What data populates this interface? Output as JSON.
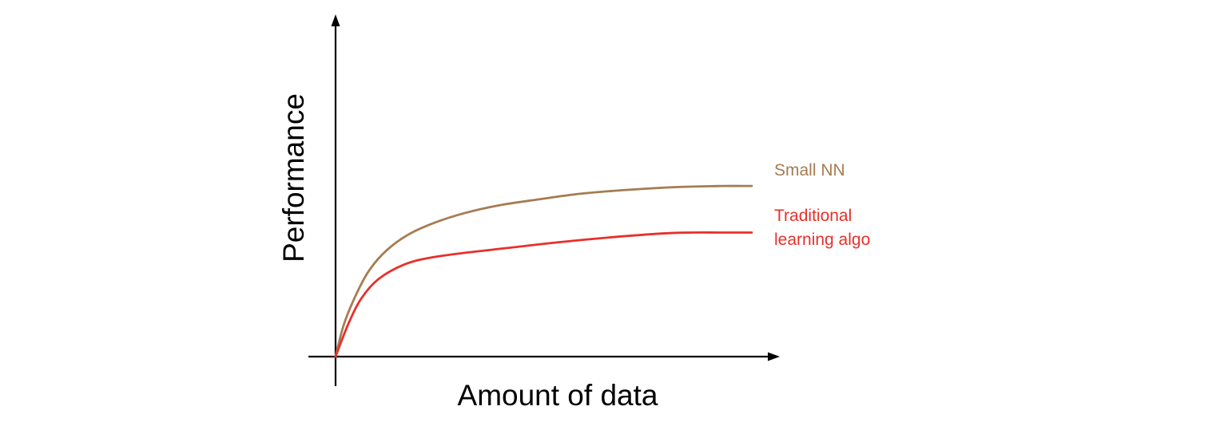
{
  "chart_data": {
    "type": "line",
    "title": "",
    "xlabel": "Amount of data",
    "ylabel": "Performance",
    "xlim": [
      0,
      100
    ],
    "ylim": [
      0,
      100
    ],
    "grid": false,
    "legend": "inline-right",
    "ticks_shown": false,
    "series": [
      {
        "name": "Small NN",
        "label_lines": [
          "Small NN"
        ],
        "color": "#a57c52",
        "x": [
          0,
          2,
          5,
          8,
          12,
          17,
          23,
          30,
          38,
          47,
          57,
          68,
          80,
          90,
          97
        ],
        "y": [
          0,
          17,
          33,
          45,
          55,
          63,
          69,
          74,
          78,
          81,
          84,
          86,
          87.5,
          88,
          88
        ]
      },
      {
        "name": "Traditional learning algo",
        "label_lines": [
          "Traditional",
          "learning algo"
        ],
        "color": "#e8302a",
        "x": [
          0,
          3,
          6,
          10,
          16,
          22,
          30,
          40,
          52,
          64,
          76,
          83,
          90,
          97
        ],
        "y": [
          0,
          17,
          30,
          40,
          47.5,
          51,
          53.5,
          56,
          59,
          61.5,
          63.5,
          64,
          64,
          64
        ]
      }
    ]
  }
}
